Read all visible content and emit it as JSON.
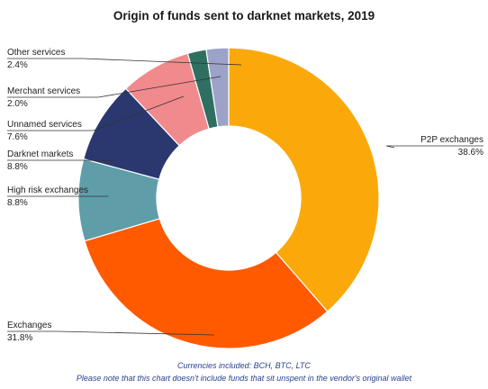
{
  "chart_data": {
    "type": "pie",
    "title": "Origin of funds sent to darknet markets, 2019",
    "slices": [
      {
        "label": "P2P exchanges",
        "value_text": "38.6%",
        "value": 38.6,
        "color": "#FBA90A"
      },
      {
        "label": "Exchanges",
        "value_text": "31.8%",
        "value": 31.8,
        "color": "#FF5A00"
      },
      {
        "label": "High risk exchanges",
        "value_text": "8.8%",
        "value": 8.8,
        "color": "#5F9EA9"
      },
      {
        "label": "Darknet markets",
        "value_text": "8.8%",
        "value": 8.8,
        "color": "#2A386F"
      },
      {
        "label": "Unnamed services",
        "value_text": "7.6%",
        "value": 7.6,
        "color": "#F08A8D"
      },
      {
        "label": "Merchant services",
        "value_text": "2.0%",
        "value": 2.0,
        "color": "#2E6F62"
      },
      {
        "label": "Other services",
        "value_text": "2.4%",
        "value": 2.4,
        "color": "#9DA2C8"
      }
    ],
    "legend": "none"
  },
  "footnotes": {
    "line1": "Currencies included: BCH, BTC, LTC",
    "line2": "Please note that this chart doesn't include funds that sit unspent in the vendor's original wallet"
  }
}
